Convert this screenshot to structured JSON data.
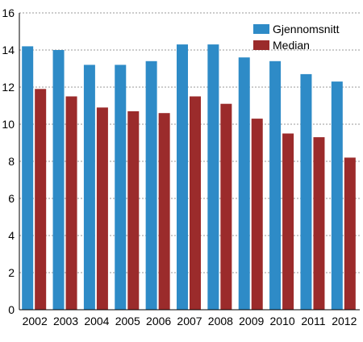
{
  "chart_data": {
    "type": "bar",
    "categories": [
      "2002",
      "2003",
      "2004",
      "2005",
      "2006",
      "2007",
      "2008",
      "2009",
      "2010",
      "2011",
      "2012"
    ],
    "series": [
      {
        "name": "Gjennomsnitt",
        "color": "#2E8BC7",
        "values": [
          14.2,
          14.0,
          13.2,
          13.2,
          13.4,
          14.3,
          14.3,
          13.6,
          13.4,
          12.7,
          12.3
        ]
      },
      {
        "name": "Median",
        "color": "#9B2B2B",
        "values": [
          11.9,
          11.5,
          10.9,
          10.7,
          10.6,
          11.5,
          11.1,
          10.3,
          9.5,
          9.3,
          8.2
        ]
      }
    ],
    "ylim": [
      0,
      16
    ],
    "yticks": [
      "0",
      "2",
      "4",
      "6",
      "8",
      "10",
      "12",
      "14",
      "16"
    ],
    "grid": "horizontal dotted",
    "legend_position": "top-right"
  }
}
